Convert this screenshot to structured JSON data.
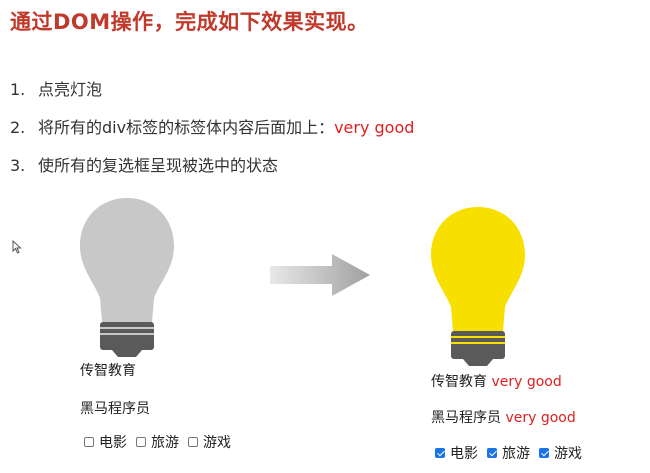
{
  "title": "通过DOM操作，完成如下效果实现。",
  "requirements": [
    {
      "num": "1.",
      "text": "点亮灯泡",
      "highlight": ""
    },
    {
      "num": "2.",
      "text": "将所有的div标签的标签体内容后面加上：",
      "highlight": "very good"
    },
    {
      "num": "3.",
      "text": "使所有的复选框呈现被选中的状态",
      "highlight": ""
    }
  ],
  "before": {
    "line1": "传智教育",
    "line2": "黑马程序员",
    "checkboxes": [
      "电影",
      "旅游",
      "游戏"
    ]
  },
  "after": {
    "line1": "传智教育",
    "line1_suffix": "very good",
    "line2": "黑马程序员",
    "line2_suffix": "very good",
    "checkboxes": [
      "电影",
      "旅游",
      "游戏"
    ]
  },
  "colors": {
    "title": "#c0392b",
    "highlight": "#e02020",
    "bulb_off": "#c8c8c8",
    "bulb_on": "#f7e000",
    "bulb_base": "#5a5a5a",
    "checkbox_checked": "#1a73e8"
  }
}
